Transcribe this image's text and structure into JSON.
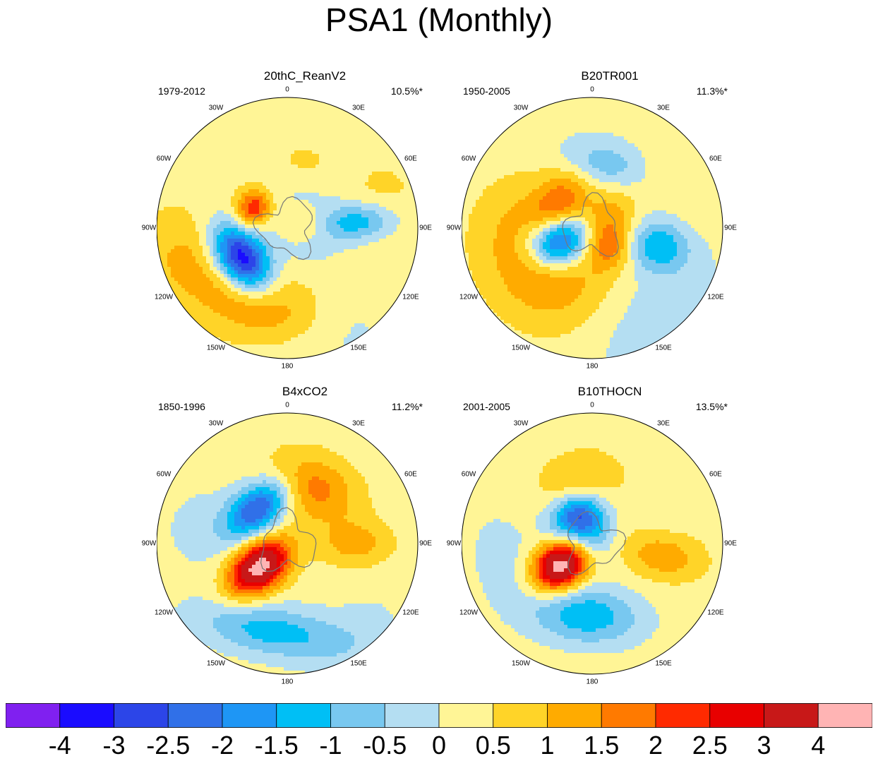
{
  "title": "PSA1 (Monthly)",
  "chart_data": {
    "type": "heatmap",
    "projection": "south-polar stereographic",
    "longitude_labels": [
      "0",
      "30E",
      "60E",
      "90E",
      "120E",
      "150E",
      "180",
      "150W",
      "120W",
      "90W",
      "60W",
      "30W"
    ],
    "levels": [
      "-4",
      "-3",
      "-2.5",
      "-2",
      "-1.5",
      "-1",
      "-0.5",
      "0",
      "0.5",
      "1",
      "1.5",
      "2",
      "2.5",
      "3",
      "4"
    ],
    "colors": [
      "#8020f0",
      "#1a0cff",
      "#2c45e8",
      "#3070e8",
      "#1e96f5",
      "#00bff5",
      "#78c8f0",
      "#b4def2",
      "#fff596",
      "#ffd428",
      "#ffab00",
      "#ff7a00",
      "#ff2a00",
      "#e80000",
      "#c81818",
      "#ffb4b4"
    ],
    "panels": [
      {
        "name": "20thC_ReanV2",
        "years": "1979-2012",
        "percent": "10.5%*",
        "background": 0.3,
        "blobs": [
          {
            "lon": 15,
            "colat": 0.52,
            "amp": 0.45,
            "sx": 0.14,
            "sy": 0.1
          },
          {
            "lon": 72,
            "colat": 0.75,
            "amp": 0.35,
            "sx": 0.2,
            "sy": 0.2
          },
          {
            "lon": 35,
            "colat": 0.3,
            "amp": -0.3,
            "sx": 0.25,
            "sy": 0.2
          },
          {
            "lon": 125,
            "colat": 0.15,
            "amp": -0.5,
            "sx": 0.18,
            "sy": 0.2
          },
          {
            "lon": 300,
            "colat": 0.3,
            "amp": 2.2,
            "sx": 0.1,
            "sy": 0.09
          },
          {
            "lon": 80,
            "colat": 0.14,
            "amp": 0.8,
            "sx": 0.1,
            "sy": 0.12
          },
          {
            "lon": 85,
            "colat": 0.55,
            "amp": -1.6,
            "sx": 0.1,
            "sy": 0.2
          },
          {
            "lon": 235,
            "colat": 0.42,
            "amp": -3.9,
            "sx": 0.2,
            "sy": 0.13
          },
          {
            "lon": 200,
            "colat": 0.62,
            "amp": 1.3,
            "sx": 0.35,
            "sy": 0.2
          },
          {
            "lon": 255,
            "colat": 0.82,
            "amp": 0.7,
            "sx": 0.25,
            "sy": 0.22
          },
          {
            "lon": 160,
            "colat": 0.9,
            "amp": -0.5,
            "sx": 0.4,
            "sy": 0.25
          }
        ]
      },
      {
        "name": "B20TR001",
        "years": "1950-2005",
        "percent": "11.3%*",
        "background": 0.1,
        "blobs": [
          {
            "lon": 10,
            "colat": 0.5,
            "amp": -1.0,
            "sx": 0.22,
            "sy": 0.12
          },
          {
            "lon": 300,
            "colat": 0.3,
            "amp": 1.5,
            "sx": 0.2,
            "sy": 0.12
          },
          {
            "lon": 60,
            "colat": 0.17,
            "amp": 1.0,
            "sx": 0.15,
            "sy": 0.15
          },
          {
            "lon": 250,
            "colat": 0.28,
            "amp": -4.0,
            "sx": 0.14,
            "sy": 0.17
          },
          {
            "lon": 240,
            "colat": 0.43,
            "amp": 1.7,
            "sx": 0.4,
            "sy": 0.33
          },
          {
            "lon": 105,
            "colat": 0.52,
            "amp": -1.6,
            "sx": 0.14,
            "sy": 0.17
          },
          {
            "lon": 140,
            "colat": 0.2,
            "amp": 1.2,
            "sx": 0.12,
            "sy": 0.12
          },
          {
            "lon": 150,
            "colat": 0.85,
            "amp": -0.4,
            "sx": 0.4,
            "sy": 0.3
          },
          {
            "lon": 60,
            "colat": 0.8,
            "amp": 0.4,
            "sx": 0.3,
            "sy": 0.2
          }
        ]
      },
      {
        "name": "B4xCO2",
        "years": "1850-1996",
        "percent": "11.2%*",
        "background": 0.25,
        "blobs": [
          {
            "lon": 25,
            "colat": 0.47,
            "amp": 1.5,
            "sx": 0.24,
            "sy": 0.17
          },
          {
            "lon": 320,
            "colat": 0.35,
            "amp": -2.8,
            "sx": 0.2,
            "sy": 0.12
          },
          {
            "lon": 230,
            "colat": 0.28,
            "amp": 4.2,
            "sx": 0.12,
            "sy": 0.18
          },
          {
            "lon": 90,
            "colat": 0.52,
            "amp": 1.0,
            "sx": 0.12,
            "sy": 0.19
          },
          {
            "lon": 190,
            "colat": 0.68,
            "amp": -1.5,
            "sx": 0.4,
            "sy": 0.14
          },
          {
            "lon": 280,
            "colat": 0.68,
            "amp": -0.4,
            "sx": 0.25,
            "sy": 0.22
          },
          {
            "lon": 140,
            "colat": 0.88,
            "amp": -0.35,
            "sx": 0.3,
            "sy": 0.2
          }
        ]
      },
      {
        "name": "B10THOCN",
        "years": "2001-2005",
        "percent": "13.5%*",
        "background": 0.3,
        "blobs": [
          {
            "lon": 350,
            "colat": 0.47,
            "amp": 0.9,
            "sx": 0.2,
            "sy": 0.15
          },
          {
            "lon": 330,
            "colat": 0.25,
            "amp": -2.6,
            "sx": 0.15,
            "sy": 0.12
          },
          {
            "lon": 0,
            "colat": 0.07,
            "amp": -1.2,
            "sx": 0.12,
            "sy": 0.14
          },
          {
            "lon": 100,
            "colat": 0.55,
            "amp": 1.1,
            "sx": 0.12,
            "sy": 0.2
          },
          {
            "lon": 235,
            "colat": 0.3,
            "amp": 4.2,
            "sx": 0.12,
            "sy": 0.15
          },
          {
            "lon": 185,
            "colat": 0.55,
            "amp": -1.7,
            "sx": 0.3,
            "sy": 0.16
          },
          {
            "lon": 260,
            "colat": 0.7,
            "amp": -0.5,
            "sx": 0.3,
            "sy": 0.2
          },
          {
            "lon": 60,
            "colat": 0.55,
            "amp": -0.25,
            "sx": 0.15,
            "sy": 0.1
          }
        ]
      }
    ]
  }
}
